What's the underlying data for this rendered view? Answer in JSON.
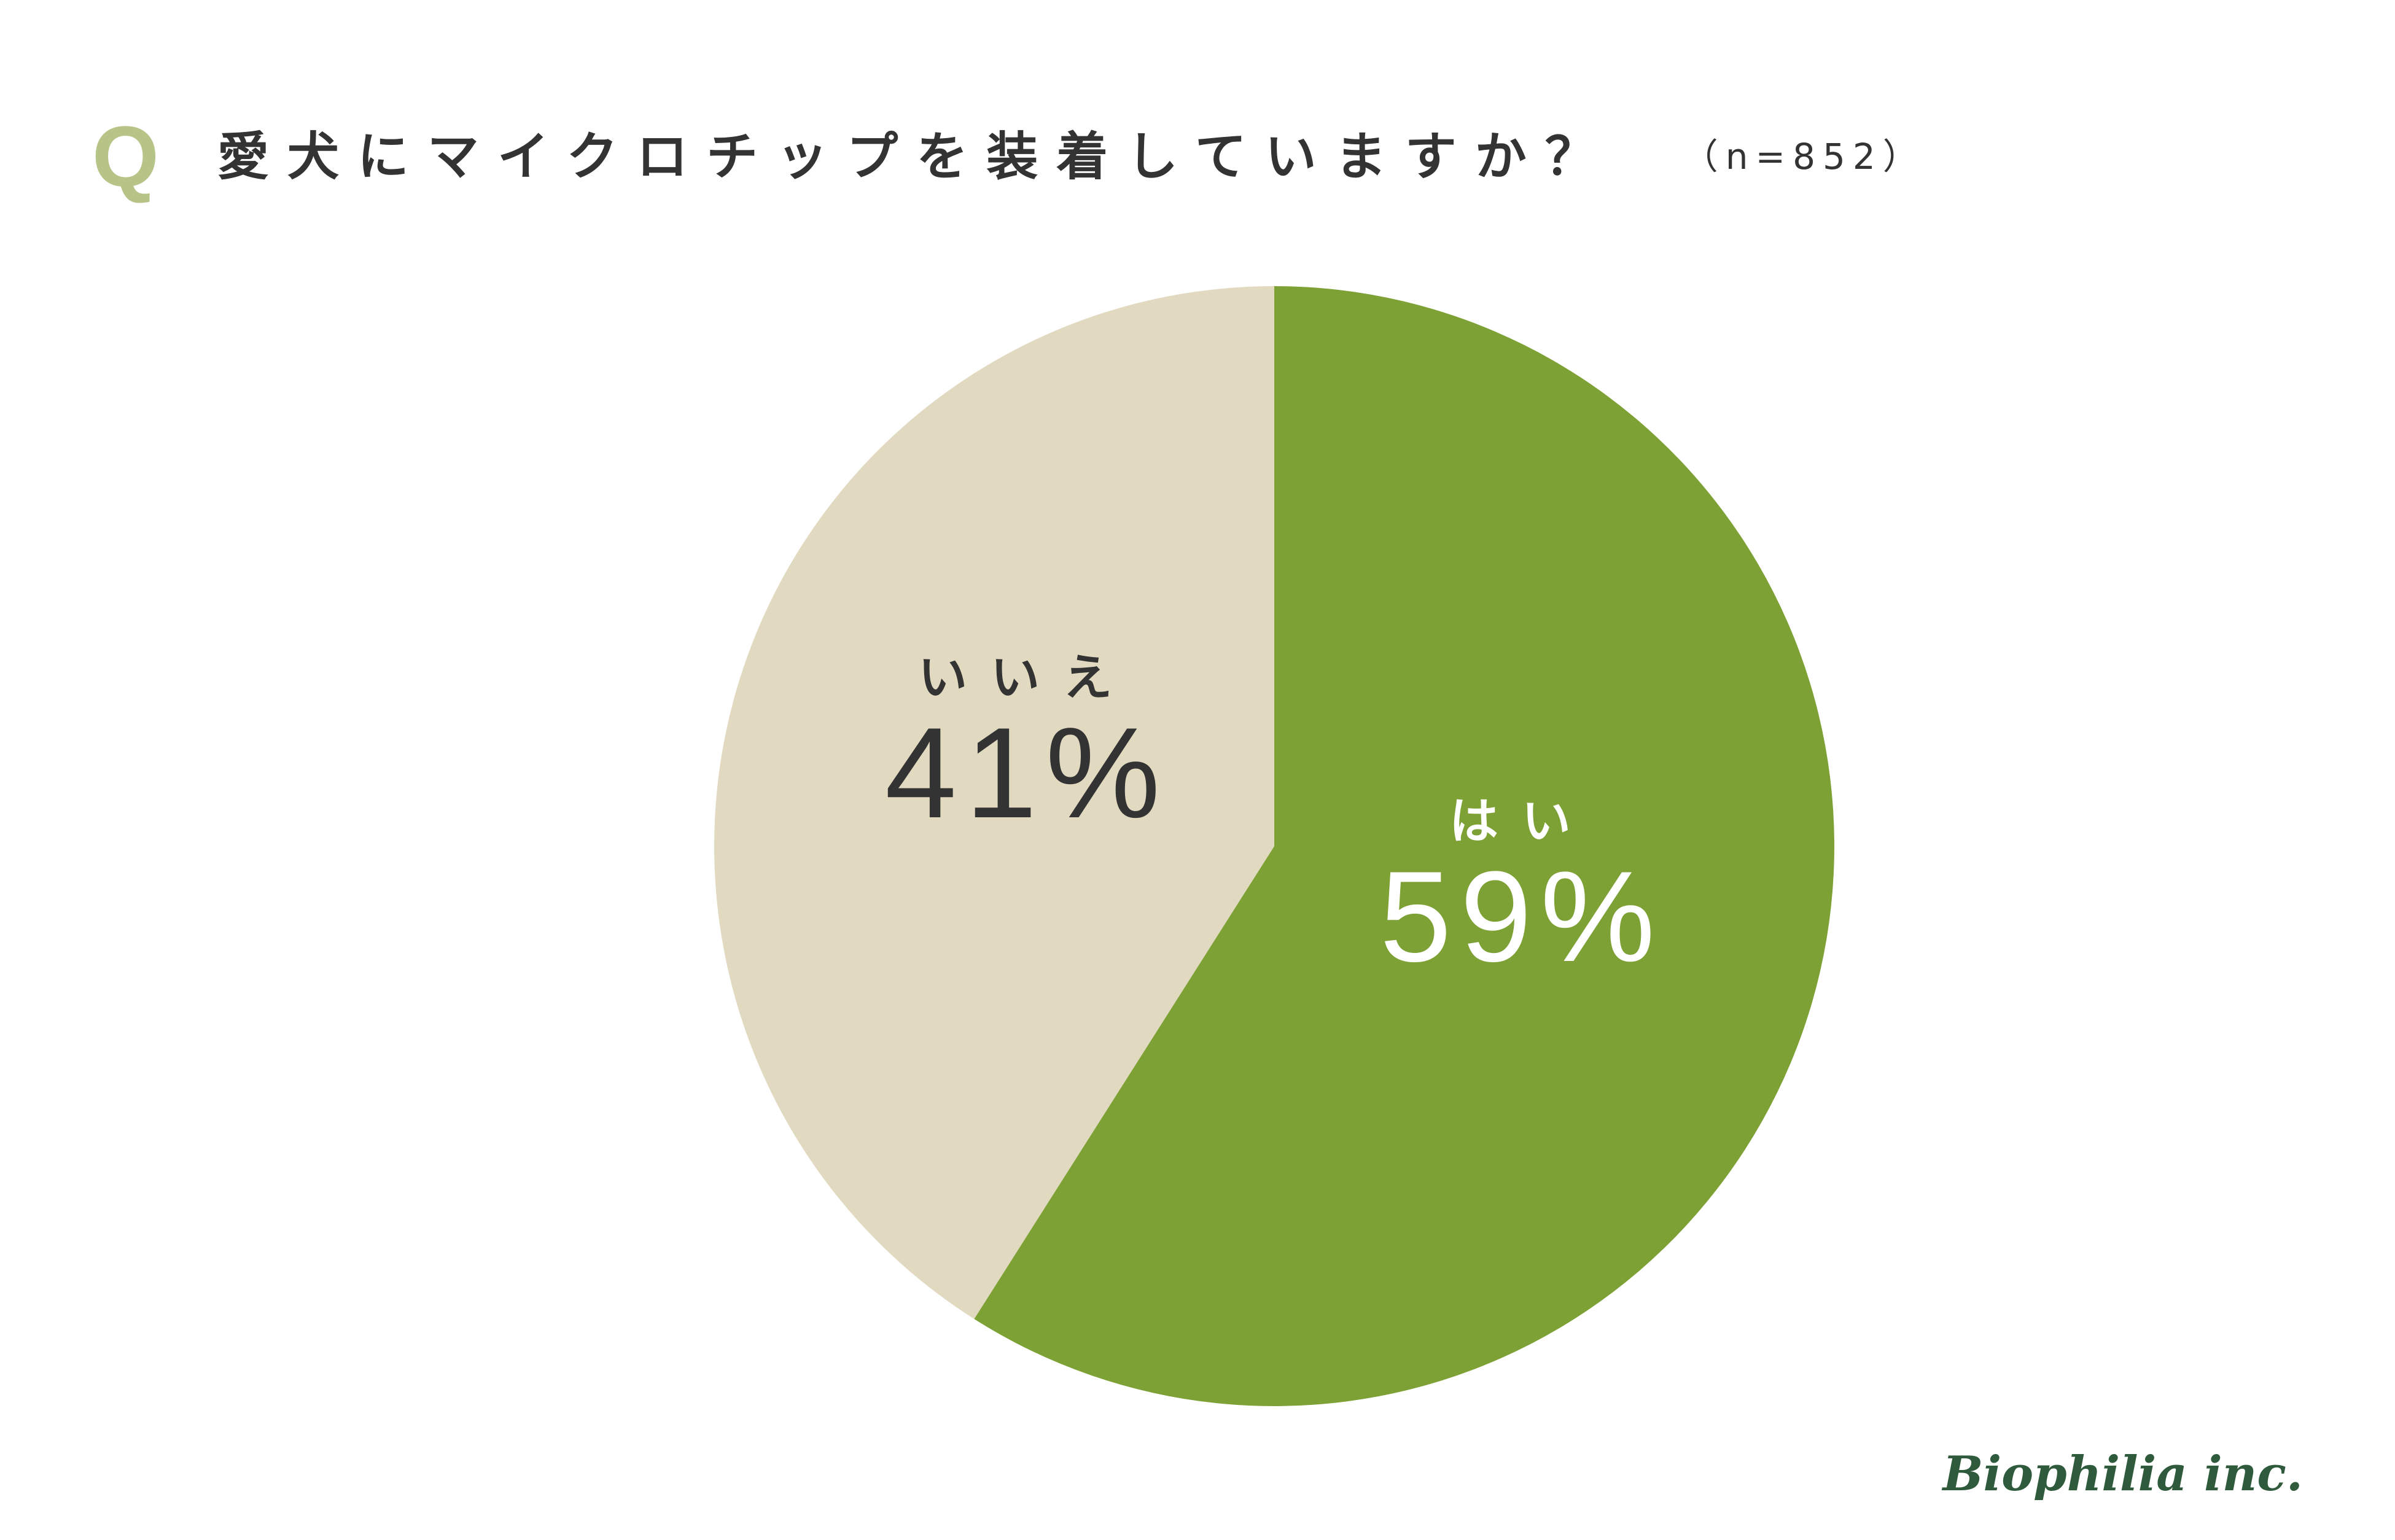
{
  "header": {
    "q_label": "Q",
    "question": "愛犬にマイクロチップを装着していますか？",
    "sample_size": "（n=852）"
  },
  "chart_data": {
    "type": "pie",
    "title": "愛犬にマイクロチップを装着していますか？",
    "start": "12 o'clock",
    "direction": "clockwise",
    "slices": [
      {
        "label": "はい",
        "value": 59,
        "display": "59%",
        "color": "#7ea135",
        "label_color": "#ffffff"
      },
      {
        "label": "いいえ",
        "value": 41,
        "display": "41%",
        "color": "#e1dac0",
        "label_color": "#333333"
      }
    ]
  },
  "logo": {
    "text": "Biophilia inc."
  }
}
